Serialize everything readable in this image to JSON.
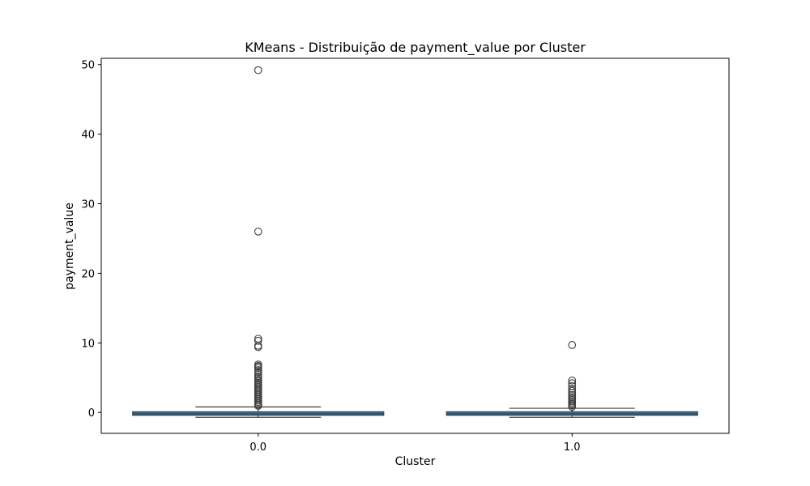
{
  "chart_data": {
    "type": "box",
    "title": "KMeans - Distribuição de payment_value por Cluster",
    "xlabel": "Cluster",
    "ylabel": "payment_value",
    "categories": [
      "0.0",
      "1.0"
    ],
    "yticks": [
      0,
      10,
      20,
      30,
      40,
      50
    ],
    "ylim": [
      -3.0,
      50.9
    ],
    "grid": false,
    "box_color": "#3274a1",
    "series": [
      {
        "category": "0.0",
        "q1": -0.4,
        "median": -0.2,
        "q3": 0.1,
        "whisker_low": -0.7,
        "whisker_high": 0.8,
        "outliers": [
          49.2,
          26.0,
          10.6,
          10.3,
          9.6,
          9.4,
          6.9,
          6.7,
          6.6,
          6.4,
          6.1,
          5.8,
          5.5,
          5.2,
          5.0,
          4.7,
          4.5,
          4.3,
          4.1,
          3.9,
          3.7,
          3.5,
          3.3,
          3.1,
          2.9,
          2.7,
          2.5,
          2.3,
          2.1,
          1.9,
          1.7,
          1.5,
          1.3,
          1.1,
          0.95
        ]
      },
      {
        "category": "1.0",
        "q1": -0.4,
        "median": -0.2,
        "q3": 0.1,
        "whisker_low": -0.7,
        "whisker_high": 0.6,
        "outliers": [
          9.7,
          4.6,
          4.2,
          3.8,
          3.4,
          3.1,
          2.8,
          2.5,
          2.2,
          2.0,
          1.8,
          1.6,
          1.4,
          1.2,
          1.0,
          0.8
        ]
      }
    ]
  }
}
